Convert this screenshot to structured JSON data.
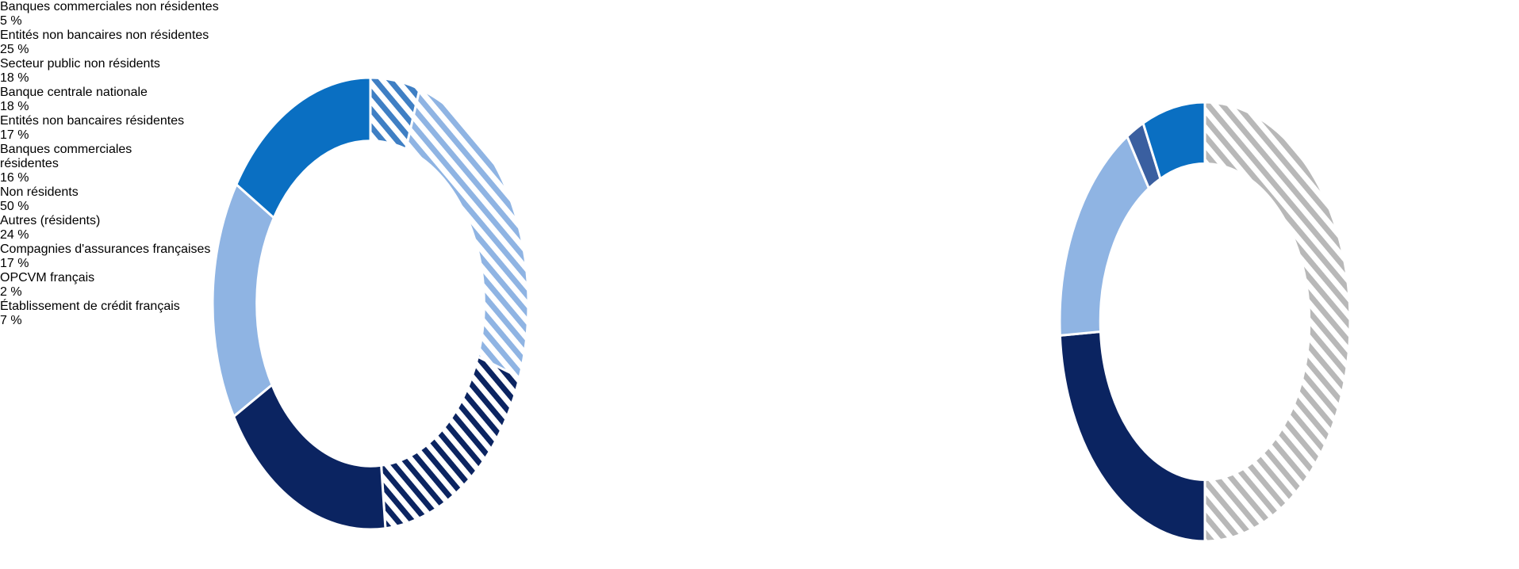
{
  "chart_data": [
    {
      "type": "donut",
      "categories": [
        "Banques commerciales non résidentes",
        "Entités non bancaires non résidentes",
        "Secteur public non résidents",
        "Banque centrale nationale",
        "Entités non bancaires résidentes",
        "Banques commerciales résidentes"
      ],
      "values": [
        5,
        25,
        18,
        18,
        17,
        16
      ],
      "value_labels": [
        "5 %",
        "25 %",
        "18 %",
        "18 %",
        "17 %",
        "16 %"
      ],
      "colors": [
        "#3f7fc4",
        "#8fb4e3",
        "#0b2461",
        "#0b2461",
        "#8fb4e3",
        "#0a6fc2"
      ],
      "hatched": [
        true,
        true,
        true,
        false,
        false,
        false
      ]
    },
    {
      "type": "donut",
      "categories": [
        "Non résidents",
        "Autres (résidents)",
        "Compagnies d'assurances françaises",
        "OPCVM français",
        "Établissement de crédit français"
      ],
      "values": [
        50,
        24,
        17,
        2,
        7
      ],
      "value_labels": [
        "50 %",
        "24 %",
        "17 %",
        "2 %",
        "7 %"
      ],
      "colors": [
        "#b8b8b8",
        "#0b2461",
        "#8fb4e3",
        "#3a5fa0",
        "#0a6fc2"
      ],
      "hatched": [
        true,
        false,
        false,
        false,
        false
      ]
    }
  ]
}
